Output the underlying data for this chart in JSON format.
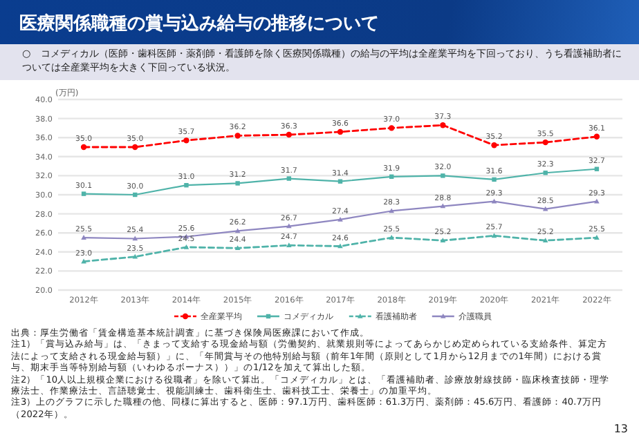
{
  "chart_data": {
    "type": "line",
    "title": "医療関係職種の賞与込み給与の推移について",
    "subtitle": "○　コメディカル（医師・歯科医師・薬剤師・看護師を除く医療関係職種）の給与の平均は全産業平均を下回っており、うち看護補助者については全産業平均を大きく下回っている状況。",
    "ylabel": "(万円)",
    "categories": [
      "2012年",
      "2013年",
      "2014年",
      "2015年",
      "2016年",
      "2017年",
      "2018年",
      "2019年",
      "2020年",
      "2021年",
      "2022年"
    ],
    "series": [
      {
        "name": "全産業平均",
        "color": "#ff0000",
        "marker": "circle",
        "line_style": "dashed",
        "values": [
          35.0,
          35.0,
          35.7,
          36.2,
          36.3,
          36.6,
          37.0,
          37.3,
          35.2,
          35.5,
          36.1
        ],
        "value_labels": [
          "35.0",
          "35.0",
          "35.7",
          "36.2",
          "36.3",
          "36.6",
          "37.0",
          "37.3",
          "35.2",
          "35.5",
          "36.1"
        ]
      },
      {
        "name": "コメディカル",
        "color": "#4fb3a9",
        "marker": "square",
        "line_style": "solid",
        "values": [
          30.1,
          30.0,
          31.0,
          31.2,
          31.7,
          31.4,
          31.9,
          32.0,
          31.6,
          32.3,
          32.7
        ],
        "value_labels": [
          "30.1",
          "30.0",
          "31.0",
          "31.2",
          "31.7",
          "31.4",
          "31.9",
          "32.0",
          "31.6",
          "32.3",
          "32.7"
        ]
      },
      {
        "name": "看護補助者",
        "color": "#4fb3a9",
        "marker": "triangle",
        "line_style": "dashed",
        "values": [
          23.0,
          23.5,
          24.5,
          24.4,
          24.7,
          24.6,
          25.5,
          25.2,
          25.7,
          25.2,
          25.5
        ],
        "value_labels": [
          "23.0",
          "23.5",
          "24.5",
          "24.4",
          "24.7",
          "24.6",
          "25.5",
          "25.2",
          "25.7",
          "25.2",
          "25.5"
        ]
      },
      {
        "name": "介護職員",
        "color": "#8e86c0",
        "marker": "triangle",
        "line_style": "solid",
        "values": [
          25.5,
          25.4,
          25.6,
          26.2,
          26.7,
          27.4,
          28.3,
          28.8,
          29.3,
          28.5,
          29.3
        ],
        "value_labels": [
          "25.5",
          "25.4",
          "25.6",
          "26.2",
          "26.7",
          "27.4",
          "28.3",
          "28.8",
          "29.3",
          "28.5",
          "29.3"
        ]
      }
    ],
    "ylim": [
      20,
      40
    ],
    "yticks": [
      {
        "value": 20,
        "label": "20.0"
      },
      {
        "value": 22,
        "label": "22.0"
      },
      {
        "value": 24,
        "label": "24.0"
      },
      {
        "value": 26,
        "label": "26.0"
      },
      {
        "value": 28,
        "label": "28.0"
      },
      {
        "value": 30,
        "label": "30.0"
      },
      {
        "value": 32,
        "label": "32.0"
      },
      {
        "value": 34,
        "label": "34.0"
      },
      {
        "value": 36,
        "label": "36.0"
      },
      {
        "value": 38,
        "label": "38.0"
      },
      {
        "value": 40,
        "label": "40.0"
      }
    ],
    "grid": "y",
    "legend": "bottom",
    "annotations": [
      "出典：厚生労働省「賃金構造基本統計調査」に基づき保険局医療課において作成。",
      "注1）「賞与込み給与」は、「きまって支給する現金給与額（労働契約、就業規則等によってあらかじめ定められている支給条件、算定方法によって支給される現金給与額）」に、「年間賞与その他特別給与額（前年1年間（原則として1月から12月までの1年間）における賞与、期末手当等特別給与額（いわゆるボーナス））」の1/12を加えて算出した額。",
      "注2）「10人以上規模企業における役職者」を除いて算出。「コメディカル」とは、「看護補助者、診療放射線技師・臨床検査技師・理学療法士、作業療法士、言語聴覚士、視能訓練士、歯科衛生士、歯科技工士、栄養士」の加重平均。",
      "注3）上のグラフに示した職種の他、同様に算出すると、医師：97.1万円、歯科医師：61.3万円、薬剤師：45.6万円、看護師：40.7万円（2022年）。",
      "13"
    ]
  }
}
